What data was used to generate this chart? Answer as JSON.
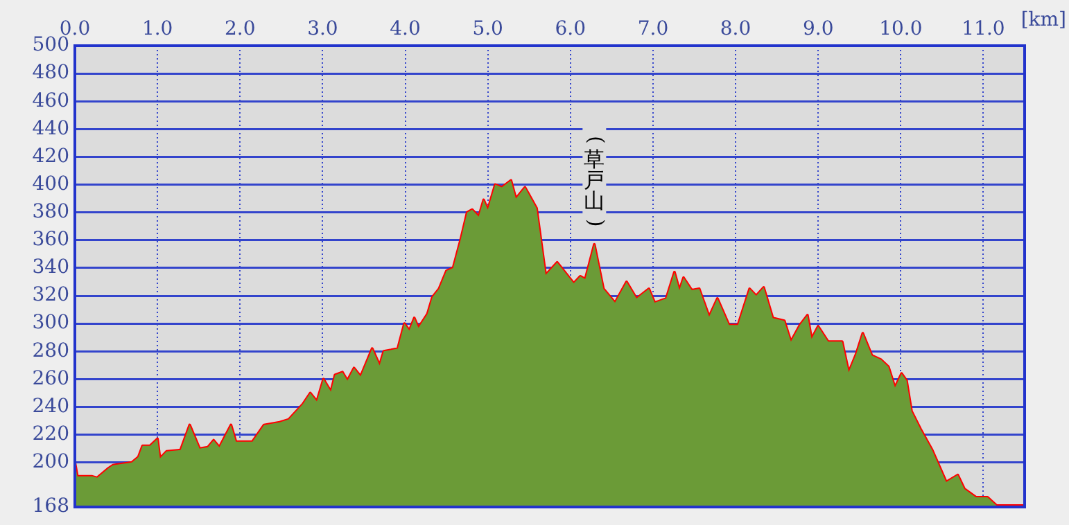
{
  "chart_data": {
    "type": "area",
    "xlabel": "[km]",
    "x": [
      0,
      0.03,
      0.21,
      0.27,
      0.41,
      0.46,
      0.69,
      0.77,
      0.82,
      0.91,
      1.0,
      1.03,
      1.11,
      1.28,
      1.39,
      1.51,
      1.61,
      1.68,
      1.75,
      1.89,
      1.95,
      2.15,
      2.29,
      2.48,
      2.59,
      2.76,
      2.85,
      2.93,
      3.01,
      3.1,
      3.15,
      3.24,
      3.3,
      3.38,
      3.46,
      3.6,
      3.69,
      3.74,
      3.83,
      3.91,
      3.99,
      4.05,
      4.11,
      4.16,
      4.27,
      4.33,
      4.41,
      4.5,
      4.58,
      4.67,
      4.75,
      4.81,
      4.89,
      4.95,
      5.0,
      5.09,
      5.17,
      5.28,
      5.34,
      5.45,
      5.59,
      5.7,
      5.84,
      6.04,
      6.12,
      6.18,
      6.29,
      6.4,
      6.54,
      6.68,
      6.8,
      6.95,
      7.02,
      7.16,
      7.26,
      7.32,
      7.37,
      7.47,
      7.56,
      7.68,
      7.78,
      7.92,
      8.03,
      8.17,
      8.25,
      8.34,
      8.45,
      8.59,
      8.67,
      8.78,
      8.87,
      8.92,
      9.0,
      9.12,
      9.29,
      9.37,
      9.46,
      9.54,
      9.65,
      9.76,
      9.85,
      9.93,
      10.01,
      10.07,
      10.13,
      10.24,
      10.38,
      10.55,
      10.69,
      10.77,
      10.91,
      11.05,
      11.16,
      11.5
    ],
    "series": [
      {
        "color": "#6b9b37",
        "values": [
          200,
          190,
          190,
          189,
          196,
          198,
          200,
          204,
          212,
          212,
          217,
          203,
          208,
          209,
          227,
          210,
          211,
          216,
          211,
          227,
          215,
          215,
          227,
          229,
          231,
          242,
          250,
          244,
          260,
          251,
          263,
          265,
          259,
          268,
          262,
          282,
          270,
          280,
          281,
          282,
          300,
          295,
          304,
          297,
          307,
          319,
          325,
          338,
          340,
          360,
          380,
          382,
          377,
          389,
          382,
          400,
          398,
          403,
          390,
          398,
          383,
          335,
          344,
          329,
          334,
          332,
          357,
          325,
          315,
          330,
          318,
          325,
          315,
          318,
          337,
          324,
          333,
          324,
          325,
          305,
          318,
          299,
          299,
          325,
          320,
          326,
          304,
          302,
          287,
          299,
          306,
          289,
          298,
          287,
          287,
          265,
          278,
          293,
          277,
          274,
          269,
          254,
          264,
          259,
          237,
          224,
          209,
          186,
          191,
          181,
          175,
          175,
          169,
          169
        ]
      },
      {
        "type": "line",
        "color": "#ff0000",
        "values": [
          200,
          190,
          190,
          189,
          196,
          198,
          200,
          204,
          212,
          212,
          217,
          203,
          208,
          209,
          227,
          210,
          211,
          216,
          211,
          227,
          215,
          215,
          227,
          229,
          231,
          242,
          250,
          244,
          260,
          251,
          263,
          265,
          259,
          268,
          262,
          282,
          270,
          280,
          281,
          282,
          300,
          295,
          304,
          297,
          307,
          319,
          325,
          338,
          340,
          360,
          380,
          382,
          377,
          389,
          382,
          400,
          398,
          403,
          390,
          398,
          383,
          335,
          344,
          329,
          334,
          332,
          357,
          325,
          315,
          330,
          318,
          325,
          315,
          318,
          337,
          324,
          333,
          324,
          325,
          305,
          318,
          299,
          299,
          325,
          320,
          326,
          304,
          302,
          287,
          299,
          306,
          289,
          298,
          287,
          287,
          265,
          278,
          293,
          277,
          274,
          269,
          254,
          264,
          259,
          237,
          224,
          209,
          186,
          191,
          181,
          175,
          175,
          169,
          169
        ]
      }
    ],
    "xlim": [
      0,
      11.5
    ],
    "xticks": [
      {
        "value": 0,
        "label": "0.0"
      },
      {
        "value": 1,
        "label": "1.0"
      },
      {
        "value": 2,
        "label": "2.0"
      },
      {
        "value": 3,
        "label": "3.0"
      },
      {
        "value": 4,
        "label": "4.0"
      },
      {
        "value": 5,
        "label": "5.0"
      },
      {
        "value": 6,
        "label": "6.0"
      },
      {
        "value": 7,
        "label": "7.0"
      },
      {
        "value": 8,
        "label": "8.0"
      },
      {
        "value": 9,
        "label": "9.0"
      },
      {
        "value": 10,
        "label": "10.0"
      },
      {
        "value": 11,
        "label": "11.0"
      }
    ],
    "ylim": [
      168,
      500
    ],
    "yticks": [
      168,
      200,
      220,
      240,
      260,
      280,
      300,
      320,
      340,
      360,
      380,
      400,
      420,
      440,
      460,
      480,
      500
    ],
    "grid": true,
    "annotations": [
      {
        "text": "(草戸山)",
        "x": 6.29,
        "y": 357
      }
    ]
  }
}
